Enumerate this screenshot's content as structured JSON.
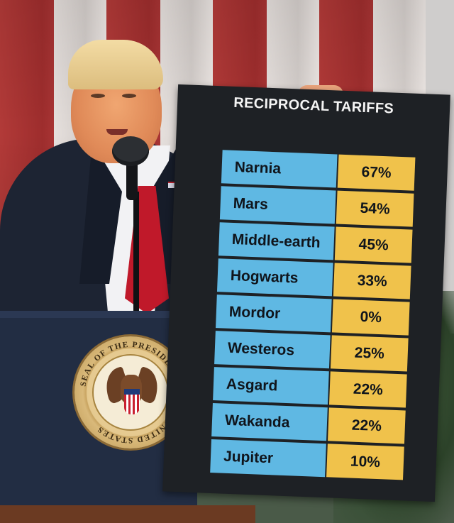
{
  "sign": {
    "title": "RECIPROCAL TARIFFS",
    "rows": [
      {
        "country": "Narnia",
        "rate": "67%"
      },
      {
        "country": "Mars",
        "rate": "54%"
      },
      {
        "country": "Middle-earth",
        "rate": "45%"
      },
      {
        "country": "Hogwarts",
        "rate": "33%"
      },
      {
        "country": "Mordor",
        "rate": "0%"
      },
      {
        "country": "Westeros",
        "rate": "25%"
      },
      {
        "country": "Asgard",
        "rate": "22%"
      },
      {
        "country": "Wakanda",
        "rate": "22%"
      },
      {
        "country": "Jupiter",
        "rate": "10%"
      }
    ],
    "colors": {
      "board": "#1e2125",
      "country_cell": "#5fb8e3",
      "rate_cell": "#f0c24b"
    }
  },
  "seal": {
    "text": "SEAL OF THE PRESIDENT OF THE UNITED STATES"
  }
}
